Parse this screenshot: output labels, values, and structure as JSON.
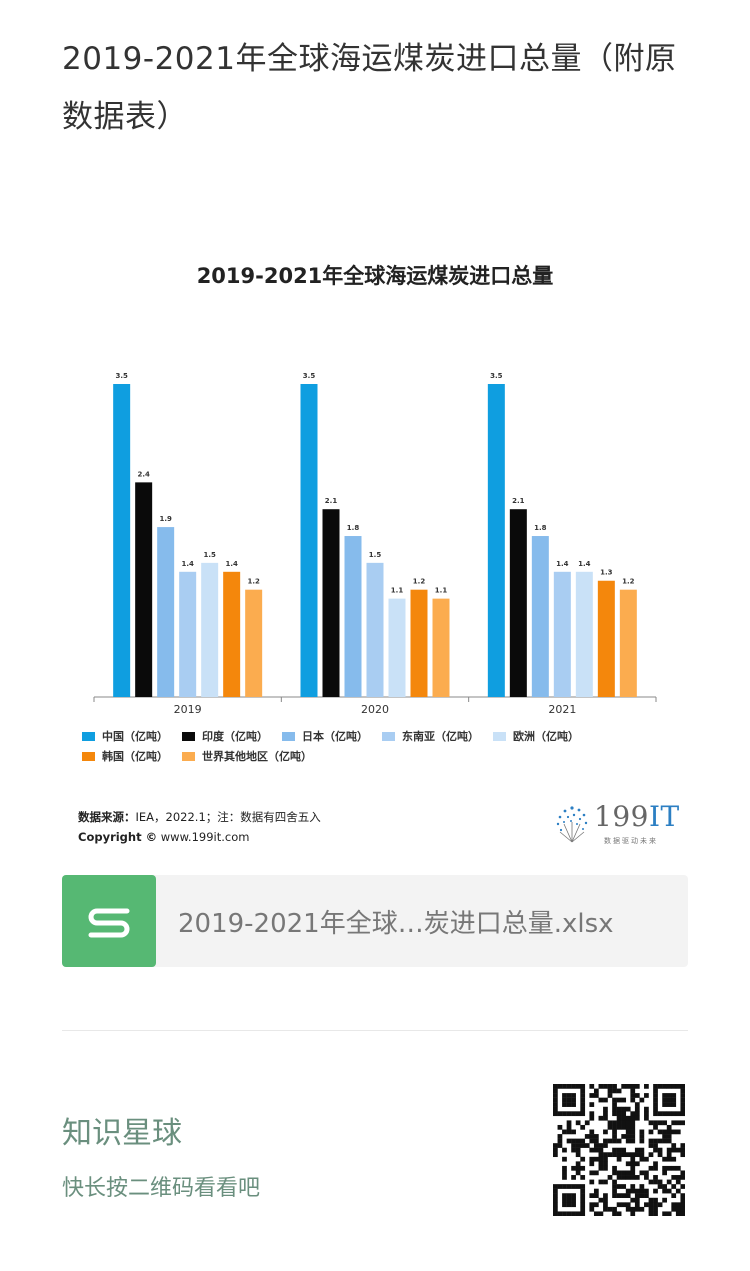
{
  "page": {
    "title": "2019-2021年全球海运煤炭进口总量（附原数据表）"
  },
  "chart_data": {
    "type": "bar",
    "title": "2019-2021年全球海运煤炭进口总量",
    "categories": [
      "2019",
      "2020",
      "2021"
    ],
    "ylim": [
      0,
      3.5
    ],
    "series": [
      {
        "name": "中国（亿吨）",
        "color": "#0f9ee0",
        "values": [
          3.5,
          3.5,
          3.5
        ],
        "labels": [
          "3.5",
          "3.5",
          "3.5"
        ]
      },
      {
        "name": "印度（亿吨）",
        "color": "#0a0a0a",
        "values": [
          2.4,
          2.1,
          2.1
        ],
        "labels": [
          "2.4",
          "2.1",
          "2.1"
        ]
      },
      {
        "name": "日本（亿吨）",
        "color": "#86bbec",
        "values": [
          1.9,
          1.8,
          1.8
        ],
        "labels": [
          "1.9",
          "1.8",
          "1.8"
        ]
      },
      {
        "name": "东南亚（亿吨）",
        "color": "#a9cdf2",
        "values": [
          1.4,
          1.5,
          1.4
        ],
        "labels": [
          "1.4",
          "1.5",
          "1.4"
        ]
      },
      {
        "name": "欧洲（亿吨）",
        "color": "#c9e1f7",
        "values": [
          1.5,
          1.1,
          1.4
        ],
        "labels": [
          "1.5",
          "1.1",
          "1.4"
        ]
      },
      {
        "name": "韩国（亿吨）",
        "color": "#f4870c",
        "values": [
          1.4,
          1.2,
          1.3
        ],
        "labels": [
          "1.4",
          "1.2",
          "1.3"
        ]
      },
      {
        "name": "世界其他地区（亿吨）",
        "color": "#fbac4f",
        "values": [
          1.2,
          1.1,
          1.2
        ],
        "labels": [
          "1.2",
          "1.1",
          "1.2"
        ]
      }
    ],
    "grid": false,
    "legend_position": "bottom"
  },
  "chart_footer": {
    "source_label": "数据来源：",
    "source_text": "IEA，2022.1；注：数据有四舍五入",
    "copyright_label": "Copyright ©",
    "copyright_text": " www.199it.com",
    "logo_num": "199",
    "logo_it": "IT",
    "logo_slogan": "数据驱动未来"
  },
  "attachment": {
    "filename": "2019-2021年全球…炭进口总量.xlsx",
    "icon": "spreadsheet-s-icon",
    "icon_color": "#56b873"
  },
  "footer": {
    "title": "知识星球",
    "subtitle": "快长按二维码看看吧",
    "accent_color": "#6a8f7e"
  }
}
